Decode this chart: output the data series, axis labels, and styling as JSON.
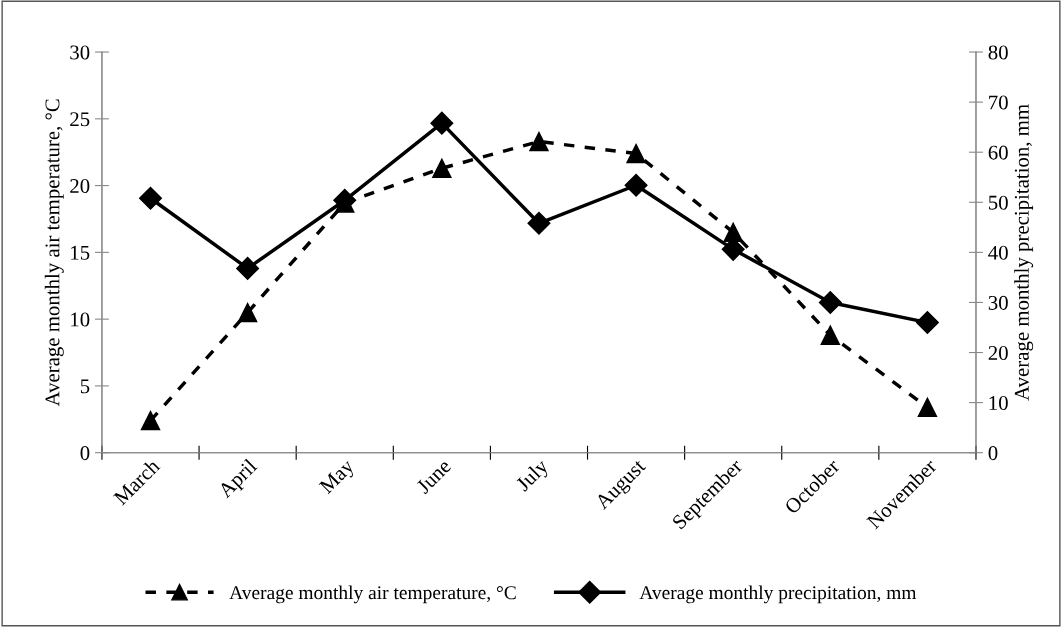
{
  "chart_data": {
    "type": "line",
    "categories": [
      "March",
      "April",
      "May",
      "June",
      "July",
      "August",
      "September",
      "October",
      "November"
    ],
    "series": [
      {
        "name": "Average monthly air temperature, °C",
        "color": "#000000",
        "values": [
          2.4,
          10.5,
          18.7,
          21.3,
          23.3,
          22.4,
          16.5,
          8.8,
          3.4
        ],
        "marker": "triangle",
        "line_style": "dashed"
      },
      {
        "name": "Average monthly precipitation, mm",
        "color": "#000000",
        "values": [
          50.8,
          36.8,
          50.4,
          65.8,
          45.8,
          53.4,
          40.6,
          30,
          26
        ],
        "marker": "diamond",
        "line_style": "solid",
        "axis": "y2"
      }
    ],
    "ylabel": "Average monthly air temperature, °C",
    "y2label": "Average monthly precipitation, mm",
    "ylim": [
      0,
      30
    ],
    "yticks": [
      0,
      5,
      10,
      15,
      20,
      25,
      30
    ],
    "y2lim": [
      0,
      80
    ],
    "y2ticks": [
      0,
      10,
      20,
      30,
      40,
      50,
      60,
      70,
      80
    ],
    "grid": false,
    "legend": "bottom"
  }
}
